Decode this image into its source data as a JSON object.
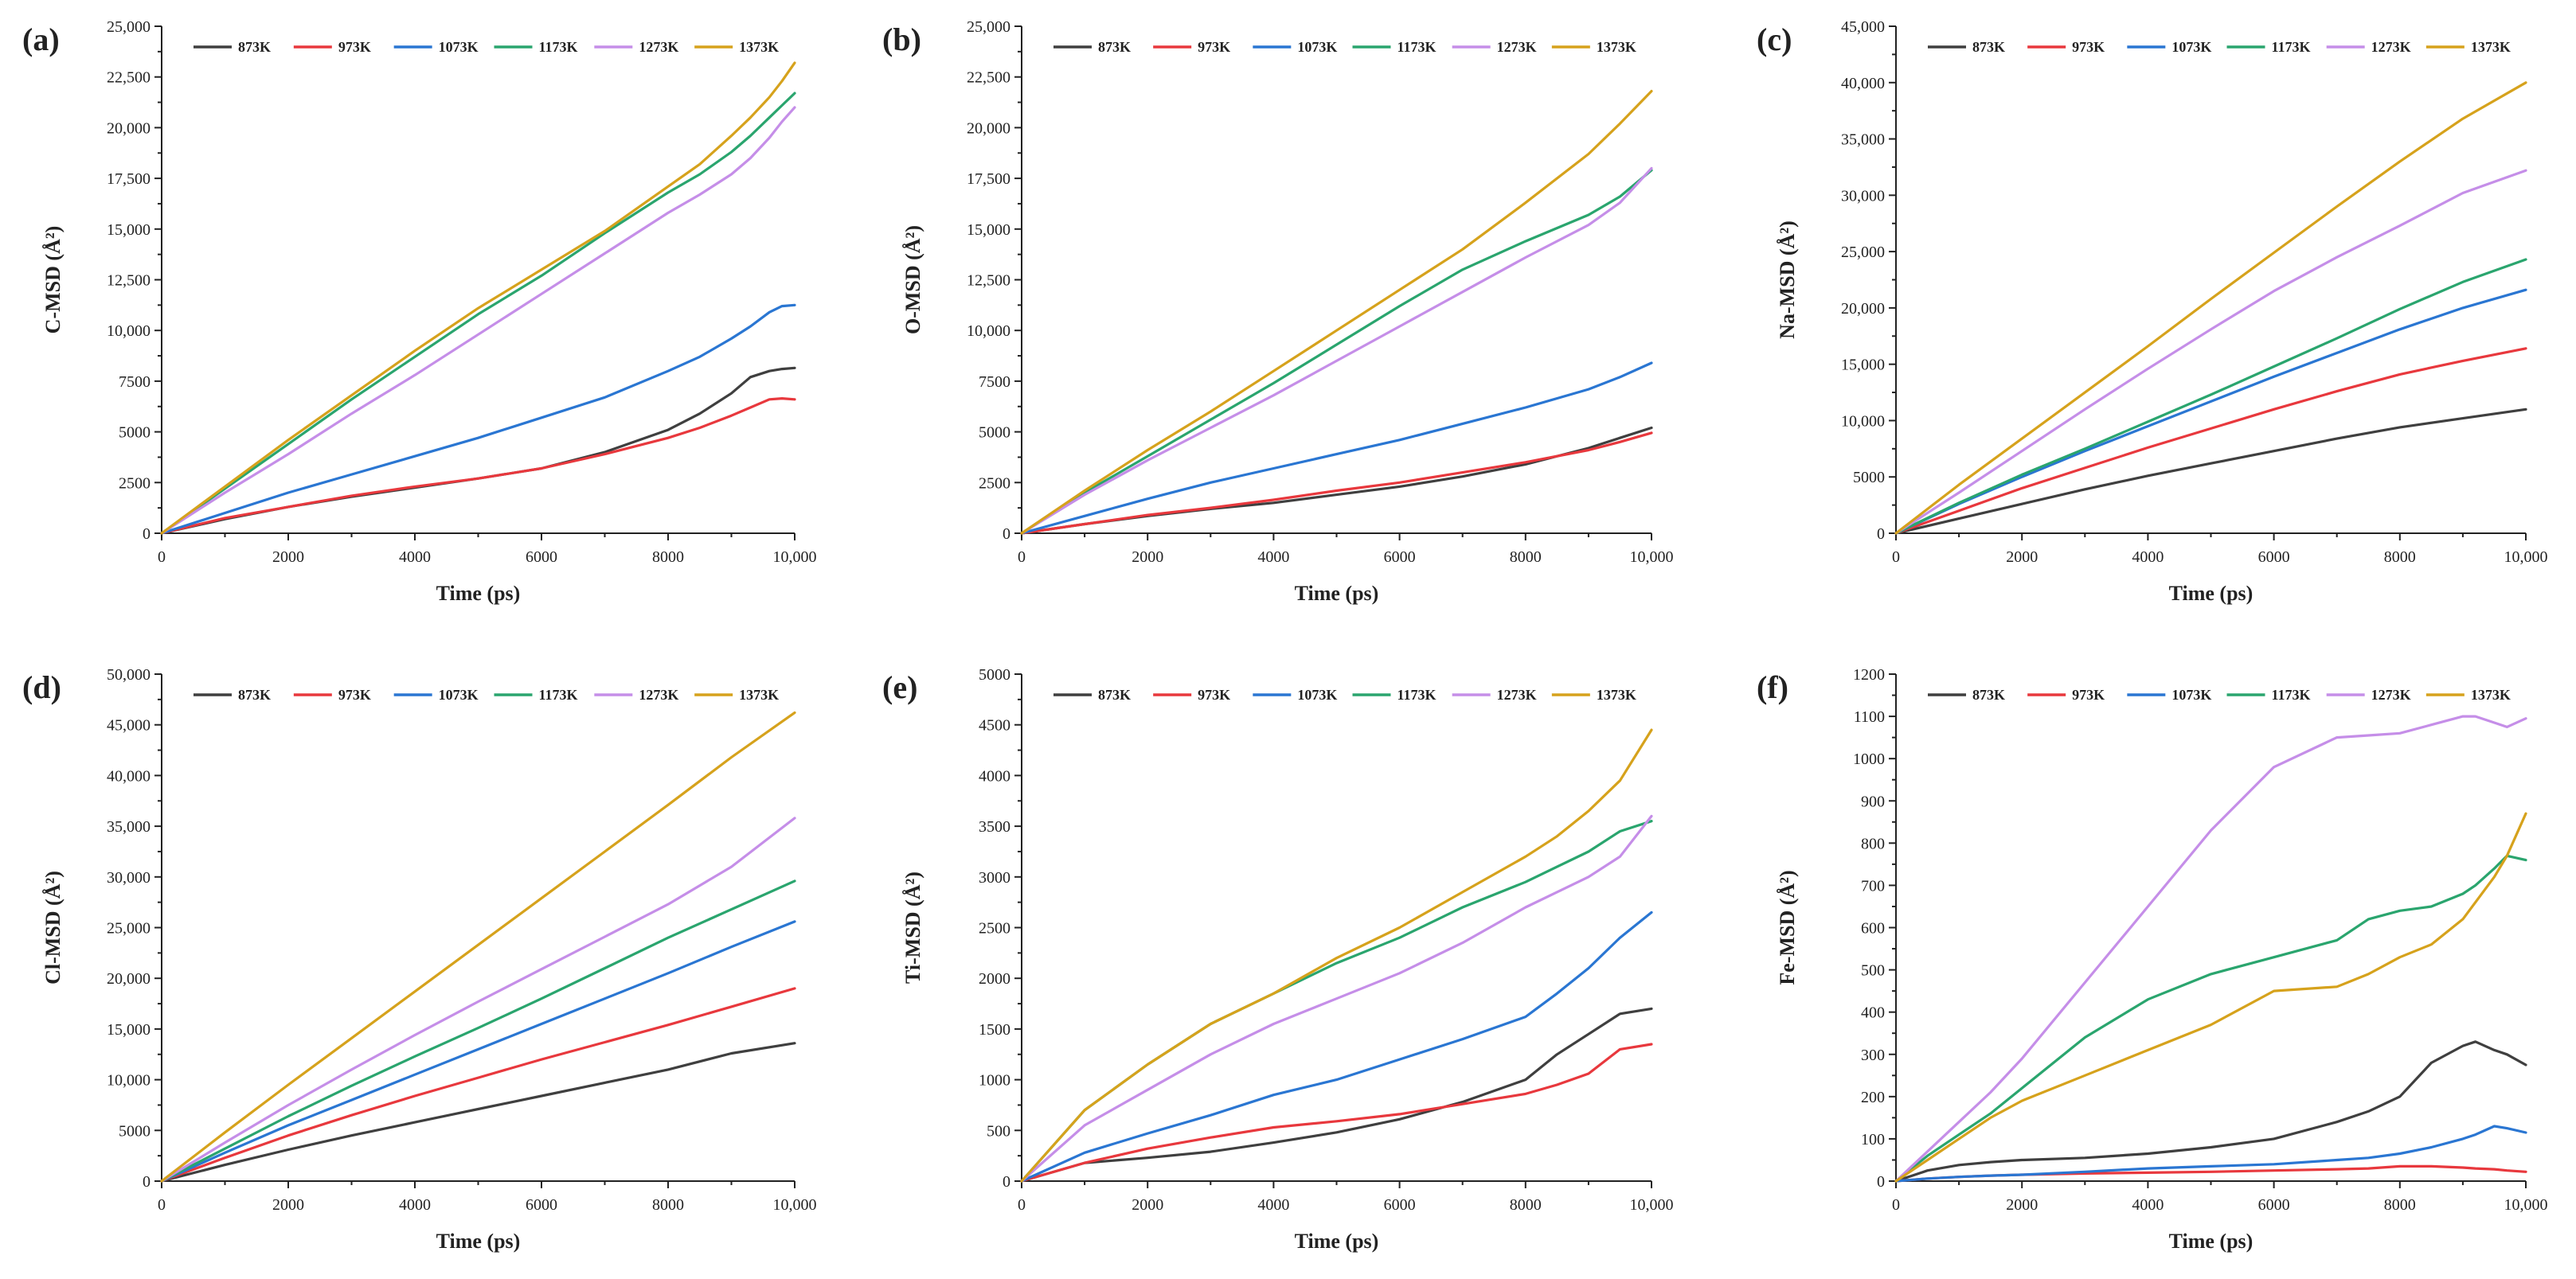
{
  "series_names": [
    "873K",
    "973K",
    "1073K",
    "1173K",
    "1273K",
    "1373K"
  ],
  "series_colors": [
    "#3f3f3f",
    "#e8383d",
    "#2a76d2",
    "#2aa56e",
    "#c58ee8",
    "#d6a21c"
  ],
  "chart_data": [
    {
      "type": "line",
      "panel_label": "(a)",
      "xlabel": "Time (ps)",
      "ylabel": "C-MSD (Å²)",
      "xlim": [
        0,
        10000
      ],
      "ylim": [
        0,
        25000
      ],
      "x_ticks": [
        0,
        2000,
        4000,
        6000,
        8000,
        10000
      ],
      "x_tick_labels": [
        "0",
        "2000",
        "4000",
        "6000",
        "8000",
        "10,000"
      ],
      "y_ticks": [
        0,
        2500,
        5000,
        7500,
        10000,
        12500,
        15000,
        17500,
        20000,
        22500,
        25000
      ],
      "y_tick_labels": [
        "0",
        "2500",
        "5000",
        "7500",
        "10,000",
        "12,500",
        "15,000",
        "17,500",
        "20,000",
        "22,500",
        "25,000"
      ],
      "legend": "top",
      "x": [
        0,
        1000,
        2000,
        3000,
        4000,
        5000,
        6000,
        7000,
        8000,
        8500,
        9000,
        9300,
        9600,
        9800,
        10000
      ],
      "series": [
        {
          "name": "873K",
          "values": [
            0,
            700,
            1300,
            1800,
            2250,
            2700,
            3200,
            4000,
            5100,
            5900,
            6900,
            7700,
            8000,
            8100,
            8150
          ]
        },
        {
          "name": "973K",
          "values": [
            0,
            750,
            1300,
            1850,
            2300,
            2700,
            3200,
            3900,
            4700,
            5200,
            5800,
            6200,
            6600,
            6650,
            6600
          ]
        },
        {
          "name": "1073K",
          "values": [
            0,
            1000,
            2000,
            2900,
            3800,
            4700,
            5700,
            6700,
            8000,
            8700,
            9600,
            10200,
            10900,
            11200,
            11250
          ]
        },
        {
          "name": "1173K",
          "values": [
            0,
            2200,
            4400,
            6600,
            8700,
            10800,
            12700,
            14800,
            16800,
            17700,
            18800,
            19600,
            20500,
            21100,
            21700
          ]
        },
        {
          "name": "1273K",
          "values": [
            0,
            2000,
            3900,
            5900,
            7800,
            9800,
            11800,
            13800,
            15800,
            16700,
            17700,
            18500,
            19500,
            20300,
            21000
          ]
        },
        {
          "name": "1373K",
          "values": [
            0,
            2300,
            4600,
            6800,
            9000,
            11100,
            13000,
            14900,
            17100,
            18200,
            19600,
            20500,
            21500,
            22300,
            23200
          ]
        }
      ]
    },
    {
      "type": "line",
      "panel_label": "(b)",
      "xlabel": "Time (ps)",
      "ylabel": "O-MSD (Å²)",
      "xlim": [
        0,
        10000
      ],
      "ylim": [
        0,
        25000
      ],
      "x_ticks": [
        0,
        2000,
        4000,
        6000,
        8000,
        10000
      ],
      "x_tick_labels": [
        "0",
        "2000",
        "4000",
        "6000",
        "8000",
        "10,000"
      ],
      "y_ticks": [
        0,
        2500,
        5000,
        7500,
        10000,
        12500,
        15000,
        17500,
        20000,
        22500,
        25000
      ],
      "y_tick_labels": [
        "0",
        "2500",
        "5000",
        "7500",
        "10,000",
        "12,500",
        "15,000",
        "17,500",
        "20,000",
        "22,500",
        "25,000"
      ],
      "legend": "top",
      "x": [
        0,
        1000,
        2000,
        3000,
        4000,
        5000,
        6000,
        7000,
        8000,
        9000,
        9500,
        10000
      ],
      "series": [
        {
          "name": "873K",
          "values": [
            0,
            450,
            850,
            1200,
            1500,
            1900,
            2300,
            2800,
            3400,
            4200,
            4700,
            5200
          ]
        },
        {
          "name": "973K",
          "values": [
            0,
            450,
            900,
            1250,
            1650,
            2100,
            2500,
            3000,
            3500,
            4100,
            4500,
            4950
          ]
        },
        {
          "name": "1073K",
          "values": [
            0,
            850,
            1700,
            2500,
            3200,
            3900,
            4600,
            5400,
            6200,
            7100,
            7700,
            8400
          ]
        },
        {
          "name": "1173K",
          "values": [
            0,
            2000,
            3800,
            5600,
            7400,
            9300,
            11200,
            13000,
            14400,
            15700,
            16600,
            17900
          ]
        },
        {
          "name": "1273K",
          "values": [
            0,
            1900,
            3600,
            5200,
            6800,
            8500,
            10200,
            11900,
            13600,
            15200,
            16300,
            18000
          ]
        },
        {
          "name": "1373K",
          "values": [
            0,
            2100,
            4100,
            6000,
            8000,
            10000,
            12000,
            14000,
            16300,
            18700,
            20200,
            21800
          ]
        }
      ]
    },
    {
      "type": "line",
      "panel_label": "(c)",
      "xlabel": "Time (ps)",
      "ylabel": "Na-MSD (Å²)",
      "xlim": [
        0,
        10000
      ],
      "ylim": [
        0,
        45000
      ],
      "x_ticks": [
        0,
        2000,
        4000,
        6000,
        8000,
        10000
      ],
      "x_tick_labels": [
        "0",
        "2000",
        "4000",
        "6000",
        "8000",
        "10,000"
      ],
      "y_ticks": [
        0,
        5000,
        10000,
        15000,
        20000,
        25000,
        30000,
        35000,
        40000,
        45000
      ],
      "y_tick_labels": [
        "0",
        "5000",
        "10,000",
        "15,000",
        "20,000",
        "25,000",
        "30,000",
        "35,000",
        "40,000",
        "45,000"
      ],
      "legend": "top",
      "x": [
        0,
        1000,
        2000,
        3000,
        4000,
        5000,
        6000,
        7000,
        8000,
        9000,
        10000
      ],
      "series": [
        {
          "name": "873K",
          "values": [
            0,
            1300,
            2600,
            3900,
            5100,
            6200,
            7300,
            8400,
            9400,
            10200,
            11000
          ]
        },
        {
          "name": "973K",
          "values": [
            0,
            2000,
            4000,
            5800,
            7600,
            9300,
            11000,
            12600,
            14100,
            15300,
            16400
          ]
        },
        {
          "name": "1073K",
          "values": [
            0,
            2600,
            5000,
            7300,
            9500,
            11700,
            13900,
            16000,
            18100,
            20000,
            21600
          ]
        },
        {
          "name": "1173K",
          "values": [
            0,
            2700,
            5200,
            7500,
            9900,
            12300,
            14800,
            17300,
            19900,
            22300,
            24300
          ]
        },
        {
          "name": "1273K",
          "values": [
            0,
            3600,
            7300,
            11000,
            14600,
            18100,
            21500,
            24500,
            27300,
            30200,
            32200
          ]
        },
        {
          "name": "1373K",
          "values": [
            0,
            4300,
            8400,
            12500,
            16600,
            20800,
            24900,
            29000,
            33000,
            36800,
            40000
          ]
        }
      ]
    },
    {
      "type": "line",
      "panel_label": "(d)",
      "xlabel": "Time (ps)",
      "ylabel": "Cl-MSD (Å²)",
      "xlim": [
        0,
        10000
      ],
      "ylim": [
        0,
        50000
      ],
      "x_ticks": [
        0,
        2000,
        4000,
        6000,
        8000,
        10000
      ],
      "x_tick_labels": [
        "0",
        "2000",
        "4000",
        "6000",
        "8000",
        "10,000"
      ],
      "y_ticks": [
        0,
        5000,
        10000,
        15000,
        20000,
        25000,
        30000,
        35000,
        40000,
        45000,
        50000
      ],
      "y_tick_labels": [
        "0",
        "5000",
        "10,000",
        "15,000",
        "20,000",
        "25,000",
        "30,000",
        "35,000",
        "40,000",
        "45,000",
        "50,000"
      ],
      "legend": "top",
      "x": [
        0,
        1000,
        2000,
        3000,
        4000,
        5000,
        6000,
        7000,
        8000,
        9000,
        10000
      ],
      "series": [
        {
          "name": "873K",
          "values": [
            0,
            1600,
            3100,
            4500,
            5800,
            7100,
            8400,
            9700,
            11000,
            12600,
            13600
          ]
        },
        {
          "name": "973K",
          "values": [
            0,
            2300,
            4500,
            6500,
            8400,
            10200,
            12000,
            13700,
            15400,
            17200,
            19000
          ]
        },
        {
          "name": "1073K",
          "values": [
            0,
            2800,
            5500,
            8000,
            10500,
            13000,
            15500,
            18000,
            20500,
            23100,
            25600
          ]
        },
        {
          "name": "1173K",
          "values": [
            0,
            3200,
            6400,
            9400,
            12300,
            15100,
            18000,
            21000,
            24000,
            26800,
            29600
          ]
        },
        {
          "name": "1273K",
          "values": [
            0,
            3800,
            7500,
            11000,
            14400,
            17700,
            20900,
            24100,
            27300,
            31000,
            35800
          ]
        },
        {
          "name": "1373K",
          "values": [
            0,
            4800,
            9500,
            14100,
            18700,
            23300,
            27900,
            32500,
            37100,
            41800,
            46200
          ]
        }
      ]
    },
    {
      "type": "line",
      "panel_label": "(e)",
      "xlabel": "Time (ps)",
      "ylabel": "Ti-MSD (Å²)",
      "xlim": [
        0,
        10000
      ],
      "ylim": [
        0,
        5000
      ],
      "x_ticks": [
        0,
        2000,
        4000,
        6000,
        8000,
        10000
      ],
      "x_tick_labels": [
        "0",
        "2000",
        "4000",
        "6000",
        "8000",
        "10,000"
      ],
      "y_ticks": [
        0,
        500,
        1000,
        1500,
        2000,
        2500,
        3000,
        3500,
        4000,
        4500,
        5000
      ],
      "y_tick_labels": [
        "0",
        "500",
        "1000",
        "1500",
        "2000",
        "2500",
        "3000",
        "3500",
        "4000",
        "4500",
        "5000"
      ],
      "legend": "top",
      "x": [
        0,
        1000,
        2000,
        3000,
        4000,
        5000,
        6000,
        7000,
        8000,
        8500,
        9000,
        9500,
        10000
      ],
      "series": [
        {
          "name": "873K",
          "values": [
            0,
            180,
            230,
            290,
            380,
            480,
            610,
            780,
            1000,
            1250,
            1450,
            1650,
            1700
          ]
        },
        {
          "name": "973K",
          "values": [
            0,
            180,
            320,
            430,
            530,
            590,
            660,
            760,
            860,
            950,
            1060,
            1300,
            1350
          ]
        },
        {
          "name": "1073K",
          "values": [
            0,
            280,
            470,
            650,
            850,
            1000,
            1200,
            1400,
            1620,
            1850,
            2100,
            2400,
            2650
          ]
        },
        {
          "name": "1173K",
          "values": [
            0,
            700,
            1150,
            1550,
            1850,
            2150,
            2400,
            2700,
            2950,
            3100,
            3250,
            3450,
            3550
          ]
        },
        {
          "name": "1273K",
          "values": [
            0,
            550,
            900,
            1250,
            1550,
            1800,
            2050,
            2350,
            2700,
            2850,
            3000,
            3200,
            3600
          ]
        },
        {
          "name": "1373K",
          "values": [
            0,
            700,
            1150,
            1550,
            1850,
            2200,
            2500,
            2850,
            3200,
            3400,
            3650,
            3950,
            4450
          ]
        }
      ]
    },
    {
      "type": "line",
      "panel_label": "(f)",
      "xlabel": "Time (ps)",
      "ylabel": "Fe-MSD (Å²)",
      "xlim": [
        0,
        10000
      ],
      "ylim": [
        0,
        1200
      ],
      "x_ticks": [
        0,
        2000,
        4000,
        6000,
        8000,
        10000
      ],
      "x_tick_labels": [
        "0",
        "2000",
        "4000",
        "6000",
        "8000",
        "10,000"
      ],
      "y_ticks": [
        0,
        100,
        200,
        300,
        400,
        500,
        600,
        700,
        800,
        900,
        1000,
        1100,
        1200
      ],
      "y_tick_labels": [
        "0",
        "100",
        "200",
        "300",
        "400",
        "500",
        "600",
        "700",
        "800",
        "900",
        "1000",
        "1100",
        "1200"
      ],
      "legend": "top",
      "x": [
        0,
        500,
        1000,
        1500,
        2000,
        3000,
        4000,
        5000,
        6000,
        7000,
        7500,
        8000,
        8500,
        9000,
        9200,
        9500,
        9700,
        10000
      ],
      "series": [
        {
          "name": "873K",
          "values": [
            0,
            25,
            38,
            45,
            50,
            55,
            65,
            80,
            100,
            140,
            165,
            200,
            280,
            320,
            330,
            310,
            300,
            275
          ]
        },
        {
          "name": "973K",
          "values": [
            0,
            6,
            10,
            13,
            15,
            18,
            20,
            22,
            25,
            28,
            30,
            35,
            35,
            32,
            30,
            28,
            25,
            22
          ]
        },
        {
          "name": "1073K",
          "values": [
            0,
            6,
            10,
            13,
            15,
            22,
            30,
            35,
            40,
            50,
            55,
            65,
            80,
            100,
            110,
            130,
            125,
            115
          ]
        },
        {
          "name": "1173K",
          "values": [
            0,
            60,
            110,
            160,
            220,
            340,
            430,
            490,
            530,
            570,
            620,
            640,
            650,
            680,
            700,
            740,
            770,
            760
          ]
        },
        {
          "name": "1273K",
          "values": [
            0,
            70,
            140,
            210,
            290,
            470,
            650,
            830,
            980,
            1050,
            1055,
            1060,
            1080,
            1100,
            1100,
            1085,
            1075,
            1095
          ]
        },
        {
          "name": "1373K",
          "values": [
            0,
            50,
            100,
            150,
            190,
            250,
            310,
            370,
            450,
            460,
            490,
            530,
            560,
            620,
            660,
            720,
            770,
            870
          ]
        }
      ]
    }
  ]
}
